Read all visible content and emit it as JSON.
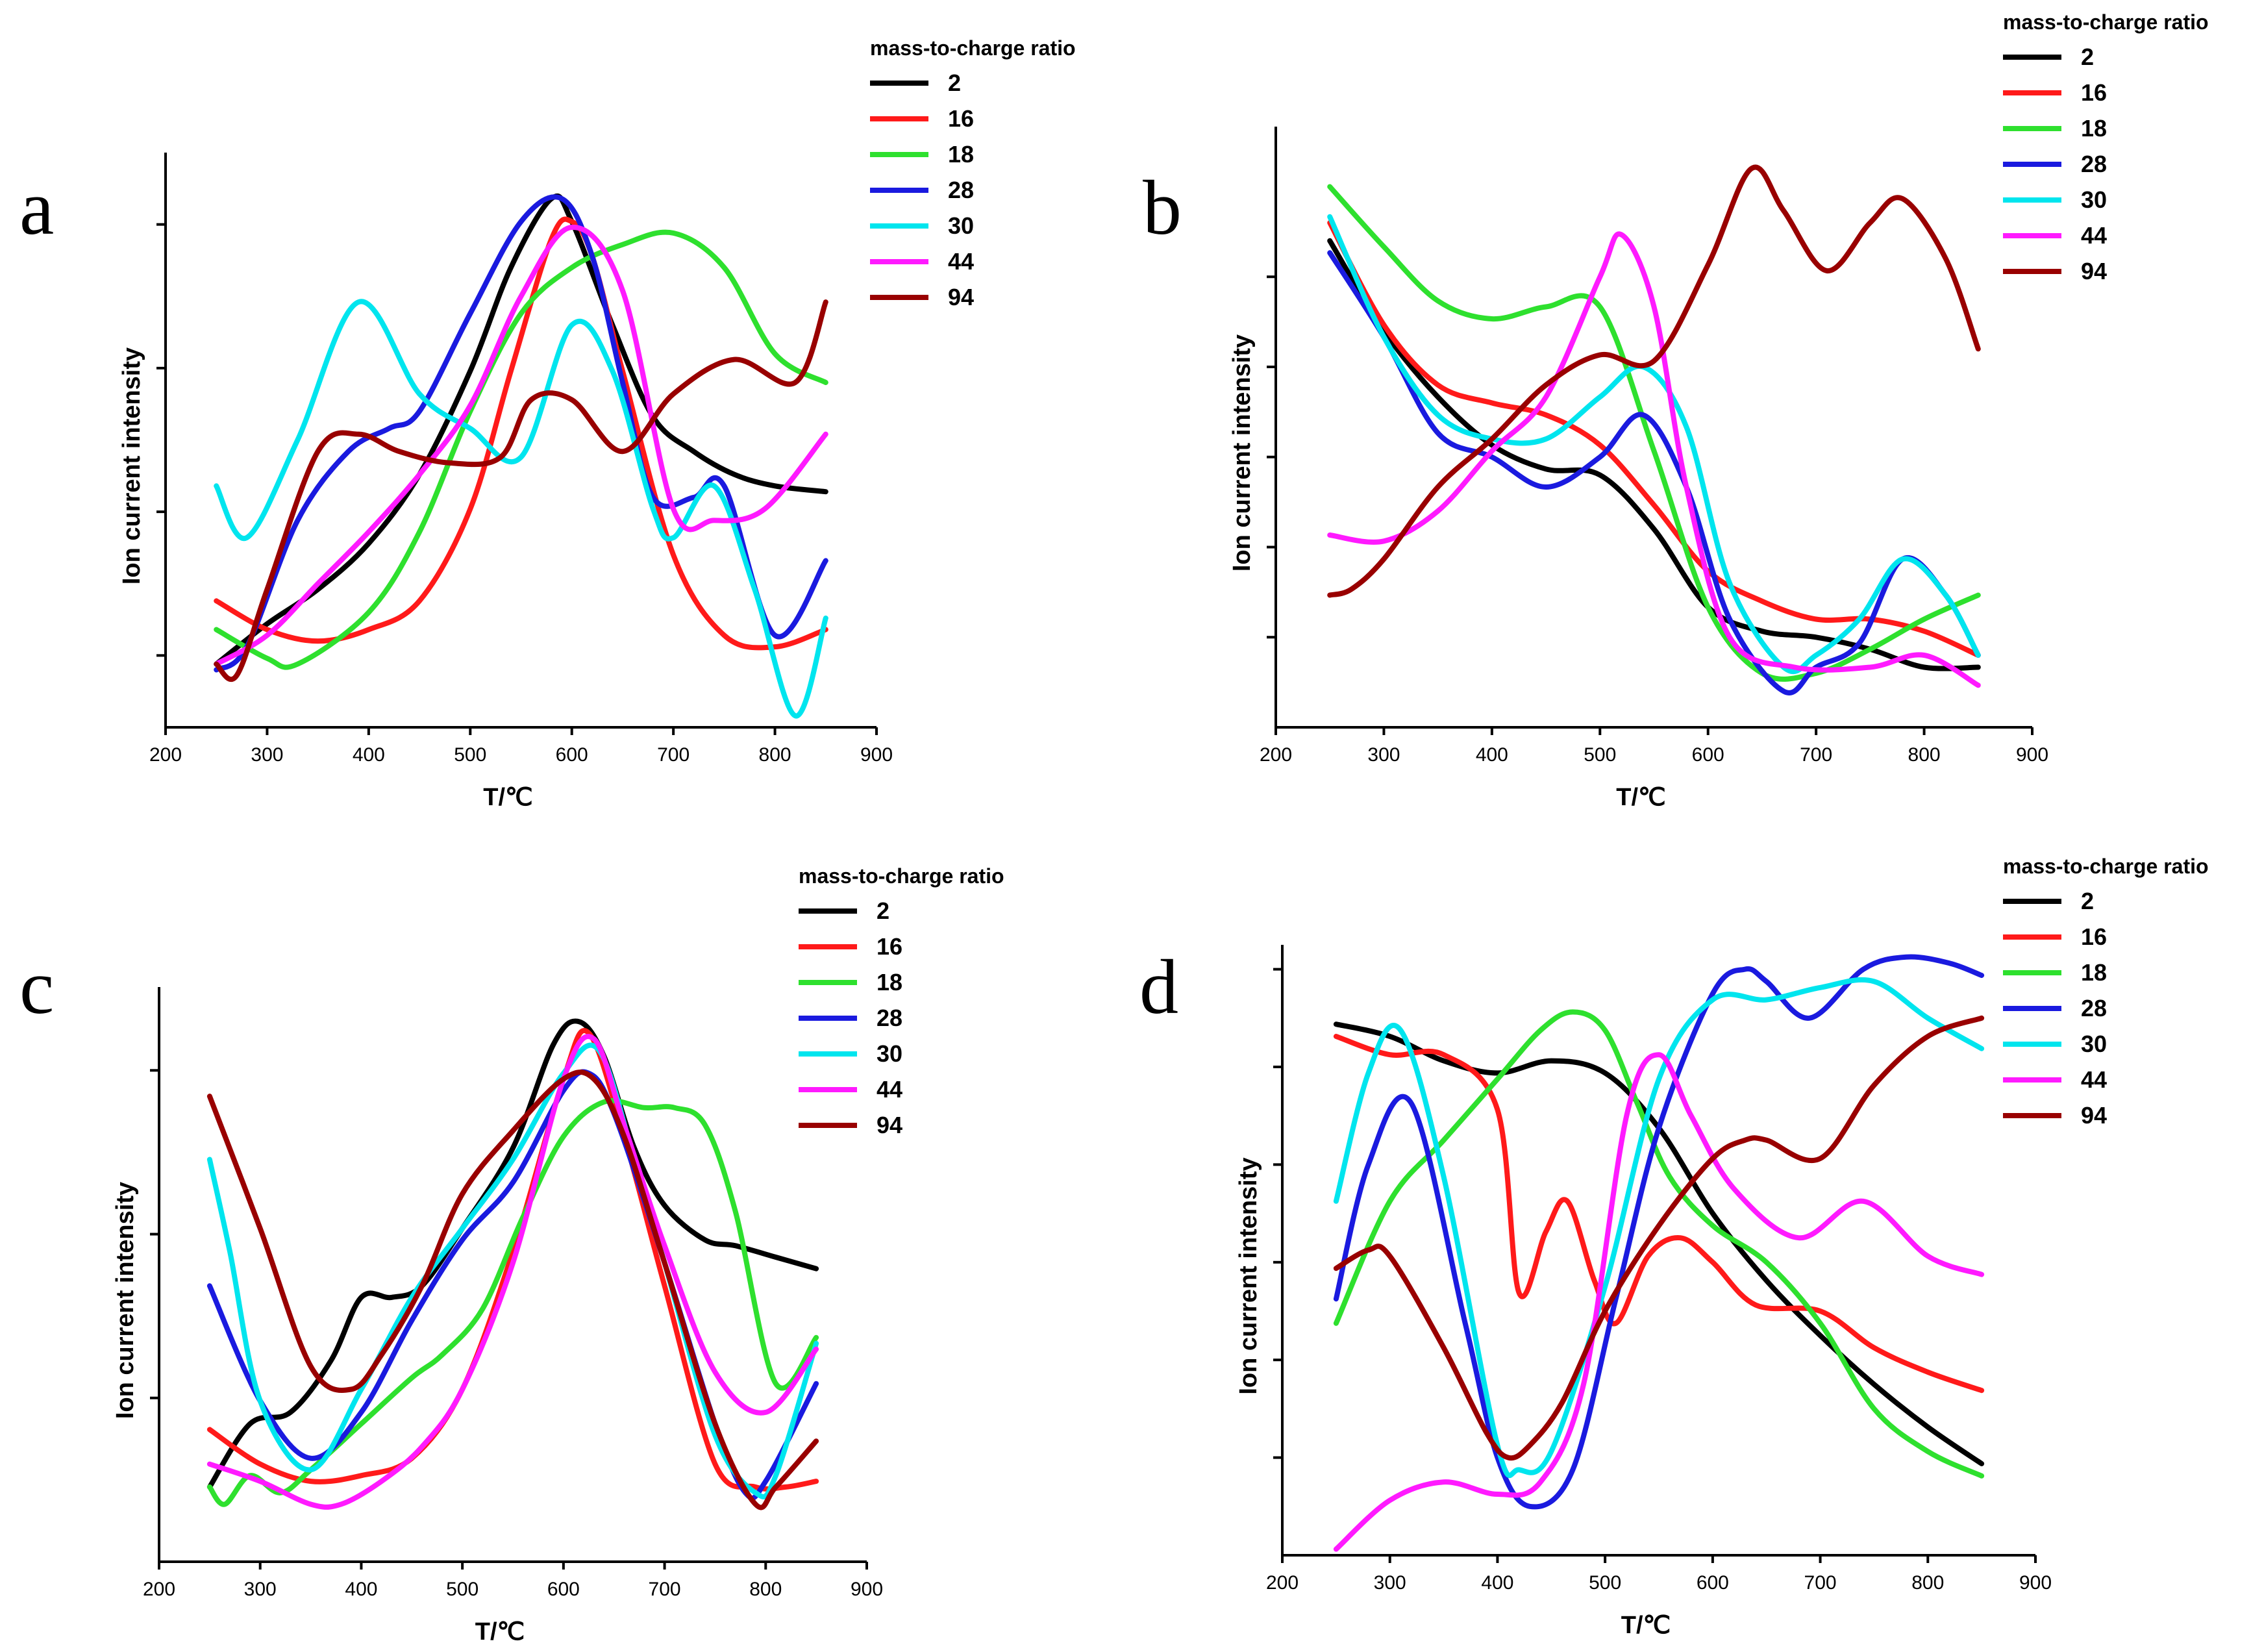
{
  "colors": {
    "2": "#000000",
    "16": "#ff1a1a",
    "18": "#2ee02e",
    "28": "#1a1adf",
    "30": "#00e5ee",
    "44": "#ff1aff",
    "94": "#990000"
  },
  "chart_data": [
    {
      "panel": "a",
      "type": "line",
      "xlabel": "T/℃",
      "ylabel": "Ion current intensity",
      "xlim": [
        200,
        900
      ],
      "ylim": [
        0,
        100
      ],
      "xticks": [
        200,
        300,
        400,
        500,
        600,
        700,
        800,
        900
      ],
      "ytick_values": [
        12.5,
        37.5,
        62.5,
        87.5
      ],
      "legend_title": "mass-to-charge ratio",
      "series": [
        {
          "name": "2",
          "x": [
            250,
            300,
            350,
            400,
            450,
            500,
            540,
            580,
            600,
            640,
            680,
            720,
            760,
            800,
            850
          ],
          "values": [
            11,
            18,
            24,
            32,
            44,
            62,
            80,
            92,
            88,
            70,
            54,
            48,
            44,
            42,
            41
          ]
        },
        {
          "name": "16",
          "x": [
            250,
            300,
            350,
            400,
            450,
            500,
            540,
            580,
            600,
            620,
            650,
            700,
            750,
            800,
            850
          ],
          "values": [
            22,
            17,
            15,
            17,
            22,
            38,
            62,
            85,
            88,
            82,
            62,
            30,
            16,
            14,
            17
          ]
        },
        {
          "name": "18",
          "x": [
            250,
            300,
            330,
            400,
            450,
            500,
            550,
            600,
            650,
            700,
            750,
            800,
            850
          ],
          "values": [
            17,
            12,
            11,
            20,
            34,
            55,
            72,
            80,
            84,
            86,
            80,
            65,
            60
          ]
        },
        {
          "name": "28",
          "x": [
            250,
            280,
            330,
            380,
            420,
            450,
            500,
            550,
            590,
            620,
            650,
            680,
            720,
            750,
            800,
            850
          ],
          "values": [
            10,
            14,
            36,
            48,
            52,
            55,
            72,
            88,
            92,
            82,
            60,
            40,
            40,
            42,
            16,
            29
          ]
        },
        {
          "name": "30",
          "x": [
            250,
            280,
            330,
            390,
            450,
            500,
            550,
            600,
            640,
            680,
            700,
            740,
            780,
            820,
            850
          ],
          "values": [
            42,
            33,
            50,
            74,
            58,
            52,
            47,
            70,
            62,
            38,
            33,
            42,
            24,
            2,
            19
          ]
        },
        {
          "name": "44",
          "x": [
            250,
            300,
            350,
            400,
            450,
            500,
            550,
            600,
            650,
            700,
            740,
            790,
            850
          ],
          "values": [
            11,
            16,
            25,
            34,
            44,
            56,
            75,
            87,
            76,
            38,
            36,
            38,
            51
          ]
        },
        {
          "name": "94",
          "x": [
            250,
            270,
            300,
            350,
            390,
            430,
            480,
            530,
            560,
            600,
            650,
            700,
            760,
            820,
            850
          ],
          "values": [
            11,
            9,
            24,
            48,
            51,
            48,
            46,
            47,
            57,
            57,
            48,
            58,
            64,
            60,
            74
          ]
        }
      ]
    },
    {
      "panel": "b",
      "type": "line",
      "xlabel": "T/℃",
      "ylabel": "Ion current intensity",
      "xlim": [
        200,
        900
      ],
      "ylim": [
        0,
        100
      ],
      "xticks": [
        200,
        300,
        400,
        500,
        600,
        700,
        800,
        900
      ],
      "ytick_values": [
        15,
        30,
        45,
        60,
        75
      ],
      "legend_title": "mass-to-charge ratio",
      "series": [
        {
          "name": "2",
          "x": [
            250,
            300,
            350,
            400,
            450,
            500,
            550,
            600,
            650,
            700,
            750,
            800,
            850
          ],
          "values": [
            81,
            66,
            55,
            47,
            43,
            42,
            33,
            20,
            16,
            15,
            13,
            10,
            10
          ]
        },
        {
          "name": "16",
          "x": [
            250,
            300,
            350,
            400,
            450,
            500,
            550,
            600,
            650,
            700,
            750,
            800,
            850
          ],
          "values": [
            84,
            67,
            57,
            54,
            52,
            47,
            37,
            26,
            21,
            18,
            18,
            16,
            12
          ]
        },
        {
          "name": "18",
          "x": [
            250,
            300,
            350,
            400,
            450,
            500,
            550,
            600,
            650,
            700,
            750,
            800,
            850
          ],
          "values": [
            90,
            80,
            71,
            68,
            70,
            70,
            46,
            20,
            9,
            9,
            13,
            18,
            22
          ]
        },
        {
          "name": "28",
          "x": [
            250,
            300,
            350,
            400,
            450,
            500,
            540,
            580,
            620,
            670,
            700,
            740,
            780,
            820,
            850
          ],
          "values": [
            79,
            65,
            49,
            45,
            40,
            45,
            52,
            40,
            18,
            6,
            10,
            14,
            28,
            22,
            12
          ]
        },
        {
          "name": "30",
          "x": [
            250,
            300,
            350,
            400,
            450,
            500,
            540,
            580,
            620,
            670,
            700,
            740,
            780,
            820,
            850
          ],
          "values": [
            85,
            65,
            52,
            48,
            48,
            55,
            60,
            50,
            24,
            10,
            12,
            18,
            28,
            22,
            12
          ]
        },
        {
          "name": "44",
          "x": [
            250,
            300,
            350,
            400,
            450,
            500,
            520,
            550,
            580,
            620,
            680,
            750,
            800,
            850
          ],
          "values": [
            32,
            31,
            36,
            46,
            55,
            75,
            82,
            70,
            40,
            15,
            10,
            10,
            12,
            7
          ]
        },
        {
          "name": "94",
          "x": [
            250,
            270,
            300,
            350,
            400,
            450,
            500,
            550,
            600,
            640,
            670,
            710,
            750,
            780,
            820,
            850
          ],
          "values": [
            22,
            23,
            28,
            40,
            48,
            57,
            62,
            61,
            77,
            93,
            86,
            76,
            84,
            88,
            78,
            63
          ]
        }
      ]
    },
    {
      "panel": "c",
      "type": "line",
      "xlabel": "T/℃",
      "ylabel": "Ion current intensity",
      "xlim": [
        200,
        900
      ],
      "ylim": [
        0,
        100
      ],
      "xticks": [
        200,
        300,
        400,
        500,
        600,
        700,
        800,
        900
      ],
      "ytick_values": [
        28.5,
        57,
        85.5
      ],
      "legend_title": "mass-to-charge ratio",
      "series": [
        {
          "name": "2",
          "x": [
            250,
            290,
            330,
            370,
            400,
            430,
            460,
            500,
            550,
            590,
            615,
            640,
            670,
            700,
            740,
            770,
            810,
            850
          ],
          "values": [
            13,
            24,
            26,
            35,
            46,
            46,
            48,
            58,
            72,
            90,
            94,
            88,
            72,
            62,
            56,
            55,
            53,
            51
          ]
        },
        {
          "name": "16",
          "x": [
            250,
            300,
            350,
            400,
            450,
            500,
            550,
            600,
            625,
            660,
            700,
            750,
            790,
            820,
            850
          ],
          "values": [
            23,
            17,
            14,
            15,
            18,
            30,
            54,
            84,
            92,
            74,
            48,
            17,
            13,
            13,
            14
          ]
        },
        {
          "name": "18",
          "x": [
            250,
            265,
            290,
            320,
            350,
            400,
            450,
            480,
            520,
            560,
            600,
            640,
            680,
            710,
            740,
            770,
            810,
            850
          ],
          "values": [
            13,
            10,
            15,
            12,
            16,
            24,
            32,
            36,
            44,
            60,
            74,
            80,
            79,
            79,
            76,
            61,
            31,
            39
          ]
        },
        {
          "name": "28",
          "x": [
            250,
            300,
            350,
            400,
            450,
            500,
            550,
            600,
            625,
            650,
            700,
            750,
            780,
            800,
            850
          ],
          "values": [
            48,
            28,
            18,
            26,
            42,
            56,
            66,
            82,
            85,
            78,
            52,
            24,
            12,
            14,
            31
          ]
        },
        {
          "name": "30",
          "x": [
            250,
            270,
            300,
            350,
            400,
            450,
            500,
            550,
            600,
            635,
            670,
            700,
            750,
            790,
            810,
            850
          ],
          "values": [
            70,
            54,
            28,
            16,
            30,
            46,
            58,
            70,
            85,
            89,
            70,
            52,
            22,
            12,
            15,
            38
          ]
        },
        {
          "name": "44",
          "x": [
            250,
            300,
            350,
            380,
            420,
            460,
            500,
            550,
            600,
            630,
            660,
            700,
            750,
            800,
            850
          ],
          "values": [
            17,
            14,
            10,
            10,
            14,
            20,
            30,
            52,
            84,
            91,
            76,
            55,
            33,
            26,
            37
          ]
        },
        {
          "name": "94",
          "x": [
            250,
            300,
            350,
            390,
            420,
            460,
            500,
            550,
            600,
            630,
            660,
            700,
            750,
            790,
            810,
            850
          ],
          "values": [
            81,
            58,
            34,
            30,
            36,
            48,
            64,
            75,
            84,
            84,
            74,
            52,
            24,
            10,
            13,
            21
          ]
        }
      ]
    },
    {
      "panel": "d",
      "type": "line",
      "xlabel": "T/℃",
      "ylabel": "Ion current intensity",
      "xlim": [
        200,
        900
      ],
      "ylim": [
        0,
        100
      ],
      "xticks": [
        200,
        300,
        400,
        500,
        600,
        700,
        800,
        900
      ],
      "ytick_values": [
        16,
        32,
        48,
        64,
        80,
        96
      ],
      "legend_title": "mass-to-charge ratio",
      "series": [
        {
          "name": "2",
          "x": [
            250,
            300,
            350,
            400,
            450,
            500,
            550,
            600,
            650,
            700,
            750,
            800,
            850
          ],
          "values": [
            87,
            85,
            81,
            79,
            81,
            79,
            70,
            56,
            45,
            36,
            28,
            21,
            15
          ]
        },
        {
          "name": "16",
          "x": [
            250,
            300,
            350,
            400,
            420,
            445,
            465,
            490,
            510,
            540,
            570,
            600,
            640,
            700,
            750,
            800,
            850
          ],
          "values": [
            85,
            82,
            82,
            73,
            43,
            53,
            58,
            45,
            38,
            49,
            52,
            48,
            41,
            40,
            34,
            30,
            27
          ]
        },
        {
          "name": "18",
          "x": [
            250,
            300,
            350,
            400,
            440,
            470,
            500,
            530,
            560,
            600,
            650,
            700,
            750,
            800,
            850
          ],
          "values": [
            38,
            58,
            68,
            78,
            86,
            89,
            86,
            74,
            62,
            54,
            48,
            38,
            24,
            17,
            13
          ]
        },
        {
          "name": "28",
          "x": [
            250,
            280,
            320,
            370,
            400,
            430,
            470,
            510,
            550,
            600,
            630,
            650,
            690,
            740,
            780,
            820,
            850
          ],
          "values": [
            42,
            64,
            74,
            38,
            16,
            8,
            14,
            42,
            70,
            92,
            96,
            94,
            88,
            96,
            98,
            97,
            95
          ]
        },
        {
          "name": "30",
          "x": [
            250,
            280,
            310,
            350,
            400,
            420,
            450,
            500,
            550,
            600,
            650,
            700,
            750,
            800,
            850
          ],
          "values": [
            58,
            79,
            86,
            62,
            18,
            14,
            17,
            44,
            78,
            91,
            91,
            93,
            94,
            88,
            83
          ]
        },
        {
          "name": "44",
          "x": [
            250,
            300,
            350,
            400,
            440,
            480,
            520,
            550,
            580,
            620,
            680,
            740,
            800,
            850
          ],
          "values": [
            1,
            9,
            12,
            10,
            12,
            28,
            72,
            82,
            72,
            60,
            52,
            58,
            49,
            46
          ]
        },
        {
          "name": "94",
          "x": [
            250,
            280,
            300,
            350,
            390,
            410,
            430,
            460,
            500,
            550,
            600,
            630,
            650,
            700,
            750,
            800,
            850
          ],
          "values": [
            47,
            50,
            49,
            34,
            20,
            16,
            18,
            25,
            40,
            54,
            65,
            68,
            68,
            65,
            77,
            85,
            88
          ]
        }
      ]
    }
  ]
}
